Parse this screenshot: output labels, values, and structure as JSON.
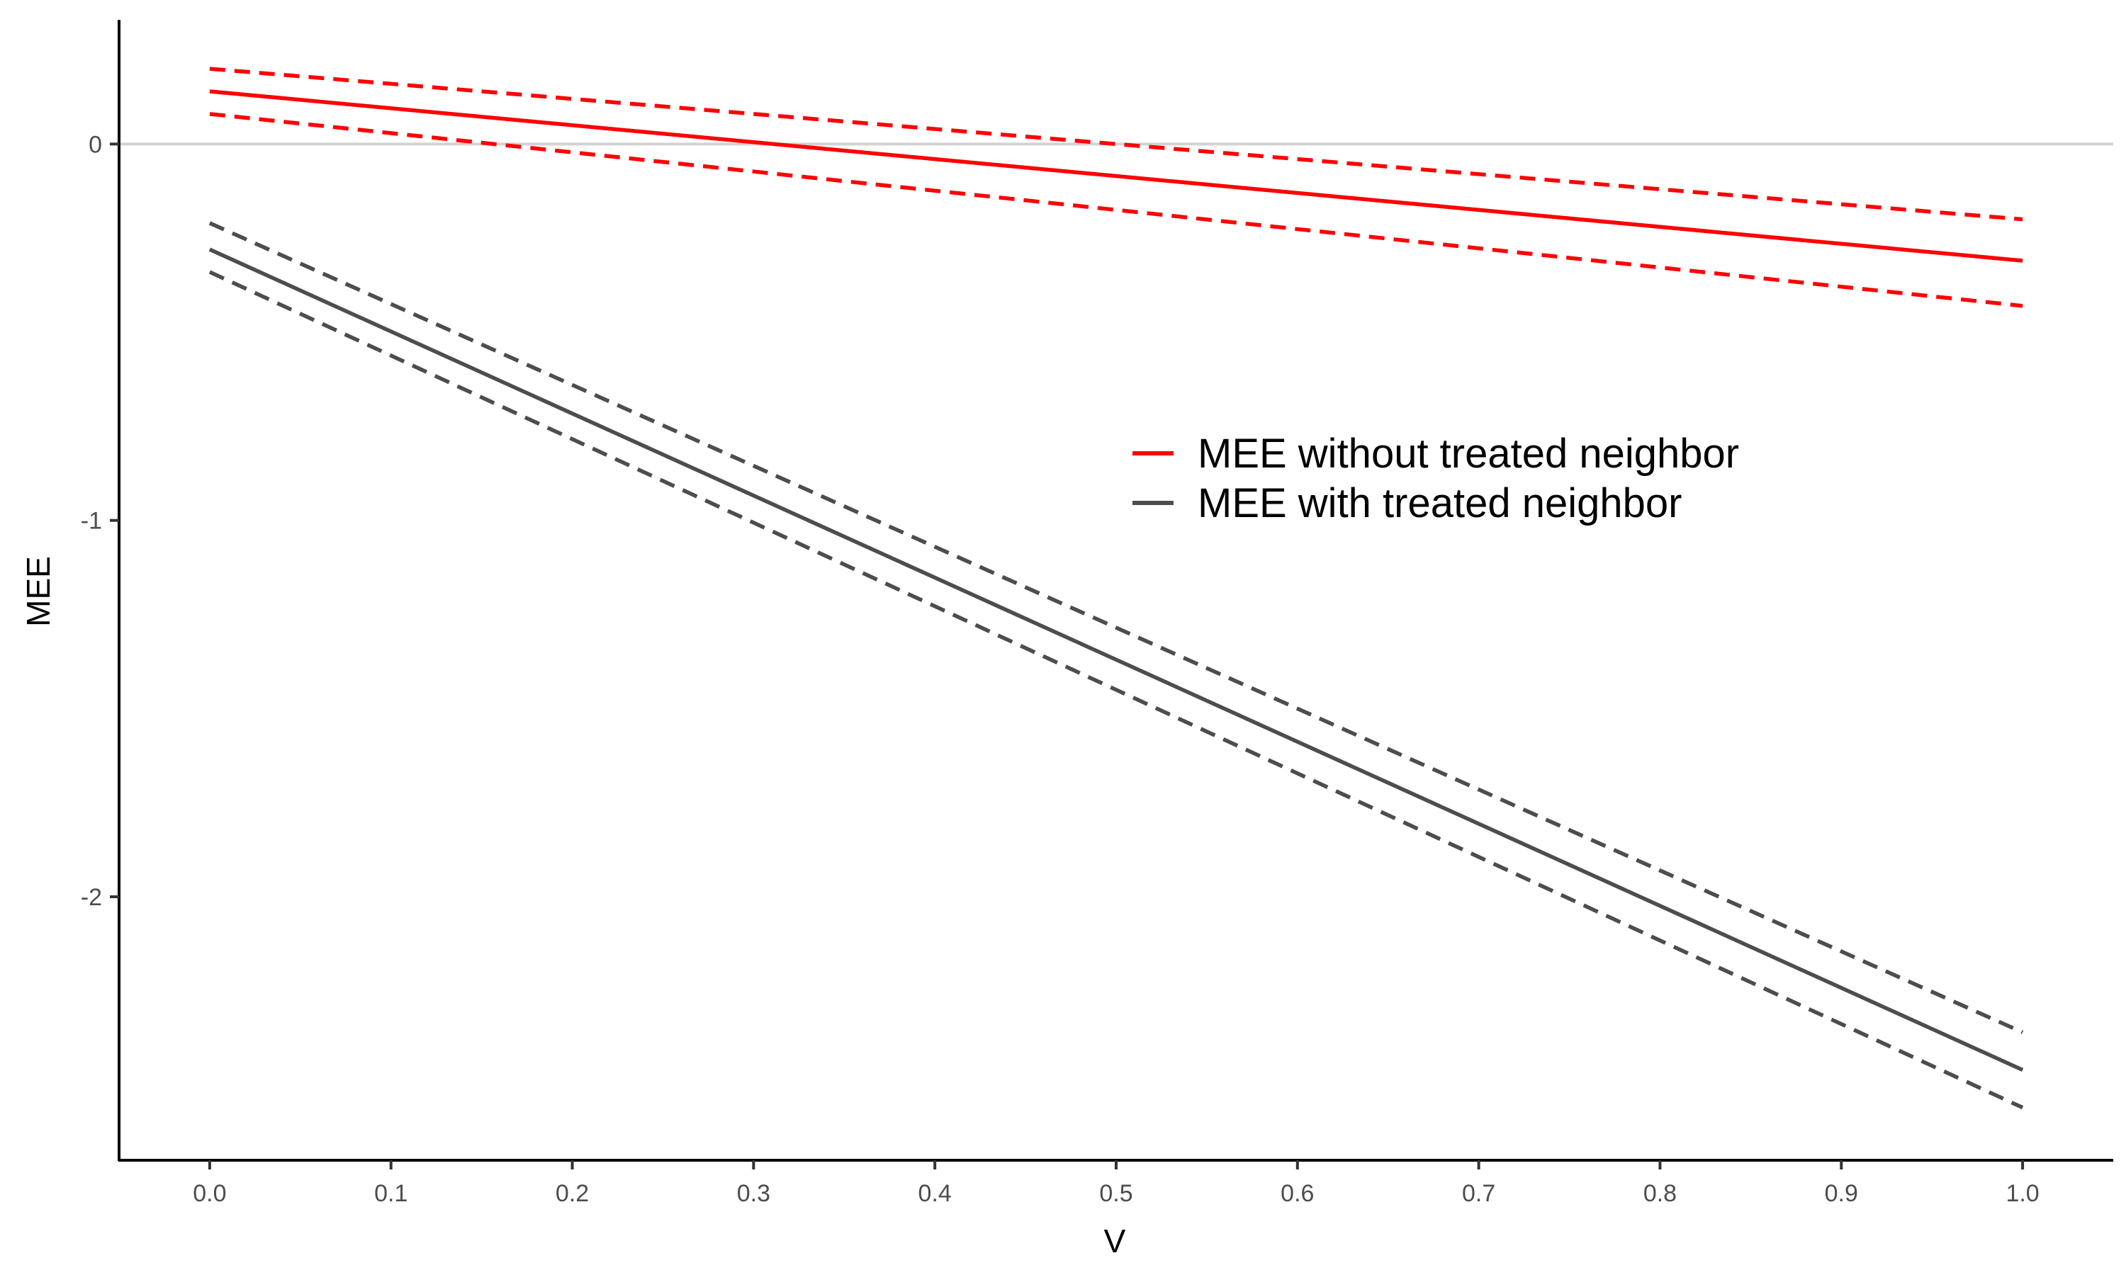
{
  "chart_data": {
    "type": "line",
    "xlabel": "V",
    "ylabel": "MEE",
    "xlim": [
      -0.05,
      1.05
    ],
    "ylim": [
      -2.7,
      0.33
    ],
    "x_ticks": [
      "0.0",
      "0.1",
      "0.2",
      "0.3",
      "0.4",
      "0.5",
      "0.6",
      "0.7",
      "0.8",
      "0.9",
      "1.0"
    ],
    "y_ticks": [
      "0",
      "-1",
      "-2"
    ],
    "reference_line": 0,
    "reference_line_color": "#d3d3d3",
    "grid": false,
    "legend_position": "right-center",
    "series": [
      {
        "name": "MEE without treated neighbor",
        "color": "#ff0000",
        "x": [
          0.0,
          1.0
        ],
        "estimate": [
          0.14,
          -0.31
        ],
        "lower": [
          0.08,
          -0.43
        ],
        "upper": [
          0.2,
          -0.2
        ]
      },
      {
        "name": "MEE with treated neighbor",
        "color": "#4d4d4d",
        "x": [
          0.0,
          1.0
        ],
        "estimate": [
          -0.28,
          -2.46
        ],
        "lower": [
          -0.34,
          -2.56
        ],
        "upper": [
          -0.21,
          -2.36
        ]
      }
    ]
  }
}
